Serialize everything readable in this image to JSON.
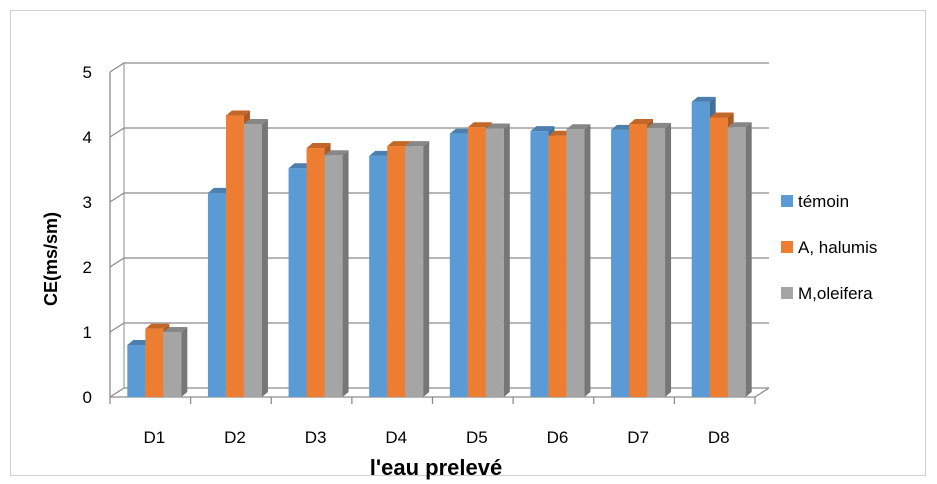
{
  "chart_data": {
    "type": "bar",
    "style": "3d-clustered-column",
    "categories": [
      "D1",
      "D2",
      "D3",
      "D4",
      "D5",
      "D6",
      "D7",
      "D8"
    ],
    "series": [
      {
        "name": "témoin",
        "color": "#5B9BD5",
        "values": [
          0.8,
          3.14,
          3.52,
          3.71,
          4.05,
          4.09,
          4.11,
          4.54
        ]
      },
      {
        "name": "A, halumis",
        "color": "#ED7D31",
        "values": [
          1.05,
          4.33,
          3.83,
          3.86,
          4.15,
          4.02,
          4.2,
          4.3
        ]
      },
      {
        "name": "M,oleifera",
        "color": "#A5A5A5",
        "values": [
          1.0,
          4.2,
          3.72,
          3.86,
          4.13,
          4.12,
          4.14,
          4.15
        ]
      }
    ],
    "yticks": [
      "0",
      "1",
      "2",
      "3",
      "4",
      "5"
    ],
    "ylim": [
      0,
      5
    ],
    "xlabel": "l'eau prelevé",
    "ylabel": "CE(ms/sm)",
    "grid": true,
    "legend_position": "right"
  }
}
